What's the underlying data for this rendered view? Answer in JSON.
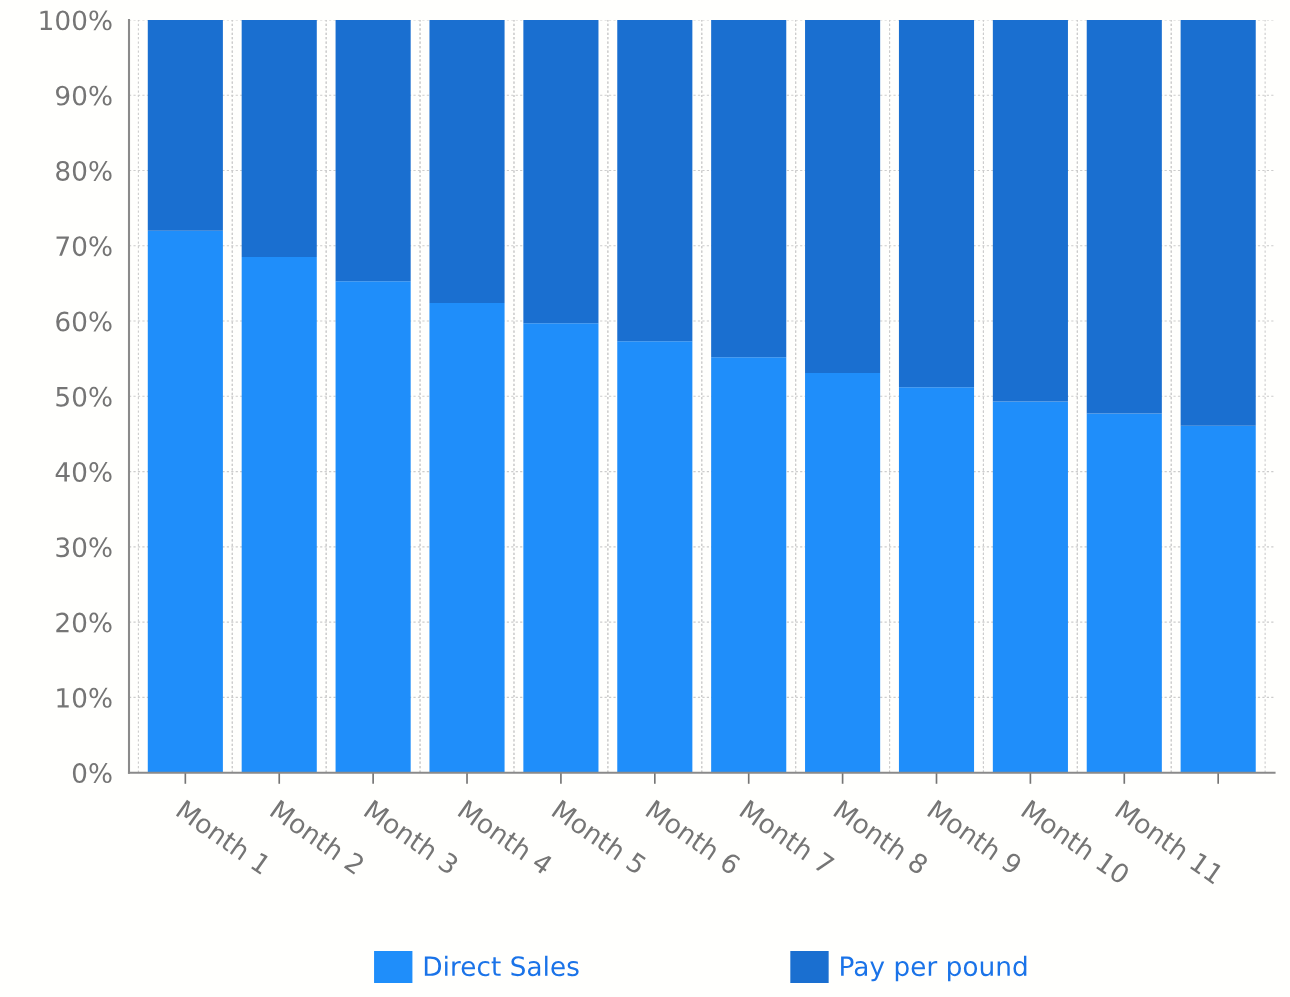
{
  "chart_data": {
    "type": "bar",
    "stacked": true,
    "categories": [
      "Month 1",
      "Month 2",
      "Month 3",
      "Month 4",
      "Month 5",
      "Month 6",
      "Month 7",
      "Month 8",
      "Month 9",
      "Month 10",
      "Month 11",
      null
    ],
    "series": [
      {
        "name": "Direct Sales",
        "color": "#1f8efa",
        "values": [
          72,
          68.5,
          65.3,
          62.4,
          59.7,
          57.3,
          55.2,
          53.1,
          51.2,
          49.3,
          47.7,
          46.1
        ]
      },
      {
        "name": "Pay per pound",
        "color": "#1a6fd0",
        "values": [
          28,
          31.5,
          34.7,
          37.6,
          40.3,
          42.7,
          44.8,
          46.9,
          48.8,
          50.7,
          52.3,
          53.9
        ]
      }
    ],
    "ylim": [
      0,
      100
    ],
    "yticks": [
      {
        "value": 0,
        "label": "0%"
      },
      {
        "value": 10,
        "label": "10%"
      },
      {
        "value": 20,
        "label": "20%"
      },
      {
        "value": 30,
        "label": "30%"
      },
      {
        "value": 40,
        "label": "40%"
      },
      {
        "value": 50,
        "label": "50%"
      },
      {
        "value": 60,
        "label": "60%"
      },
      {
        "value": 70,
        "label": "70%"
      },
      {
        "value": 80,
        "label": "80%"
      },
      {
        "value": 90,
        "label": "90%"
      },
      {
        "value": 100,
        "label": "100%"
      }
    ],
    "grid": true,
    "legend": "bottom"
  }
}
